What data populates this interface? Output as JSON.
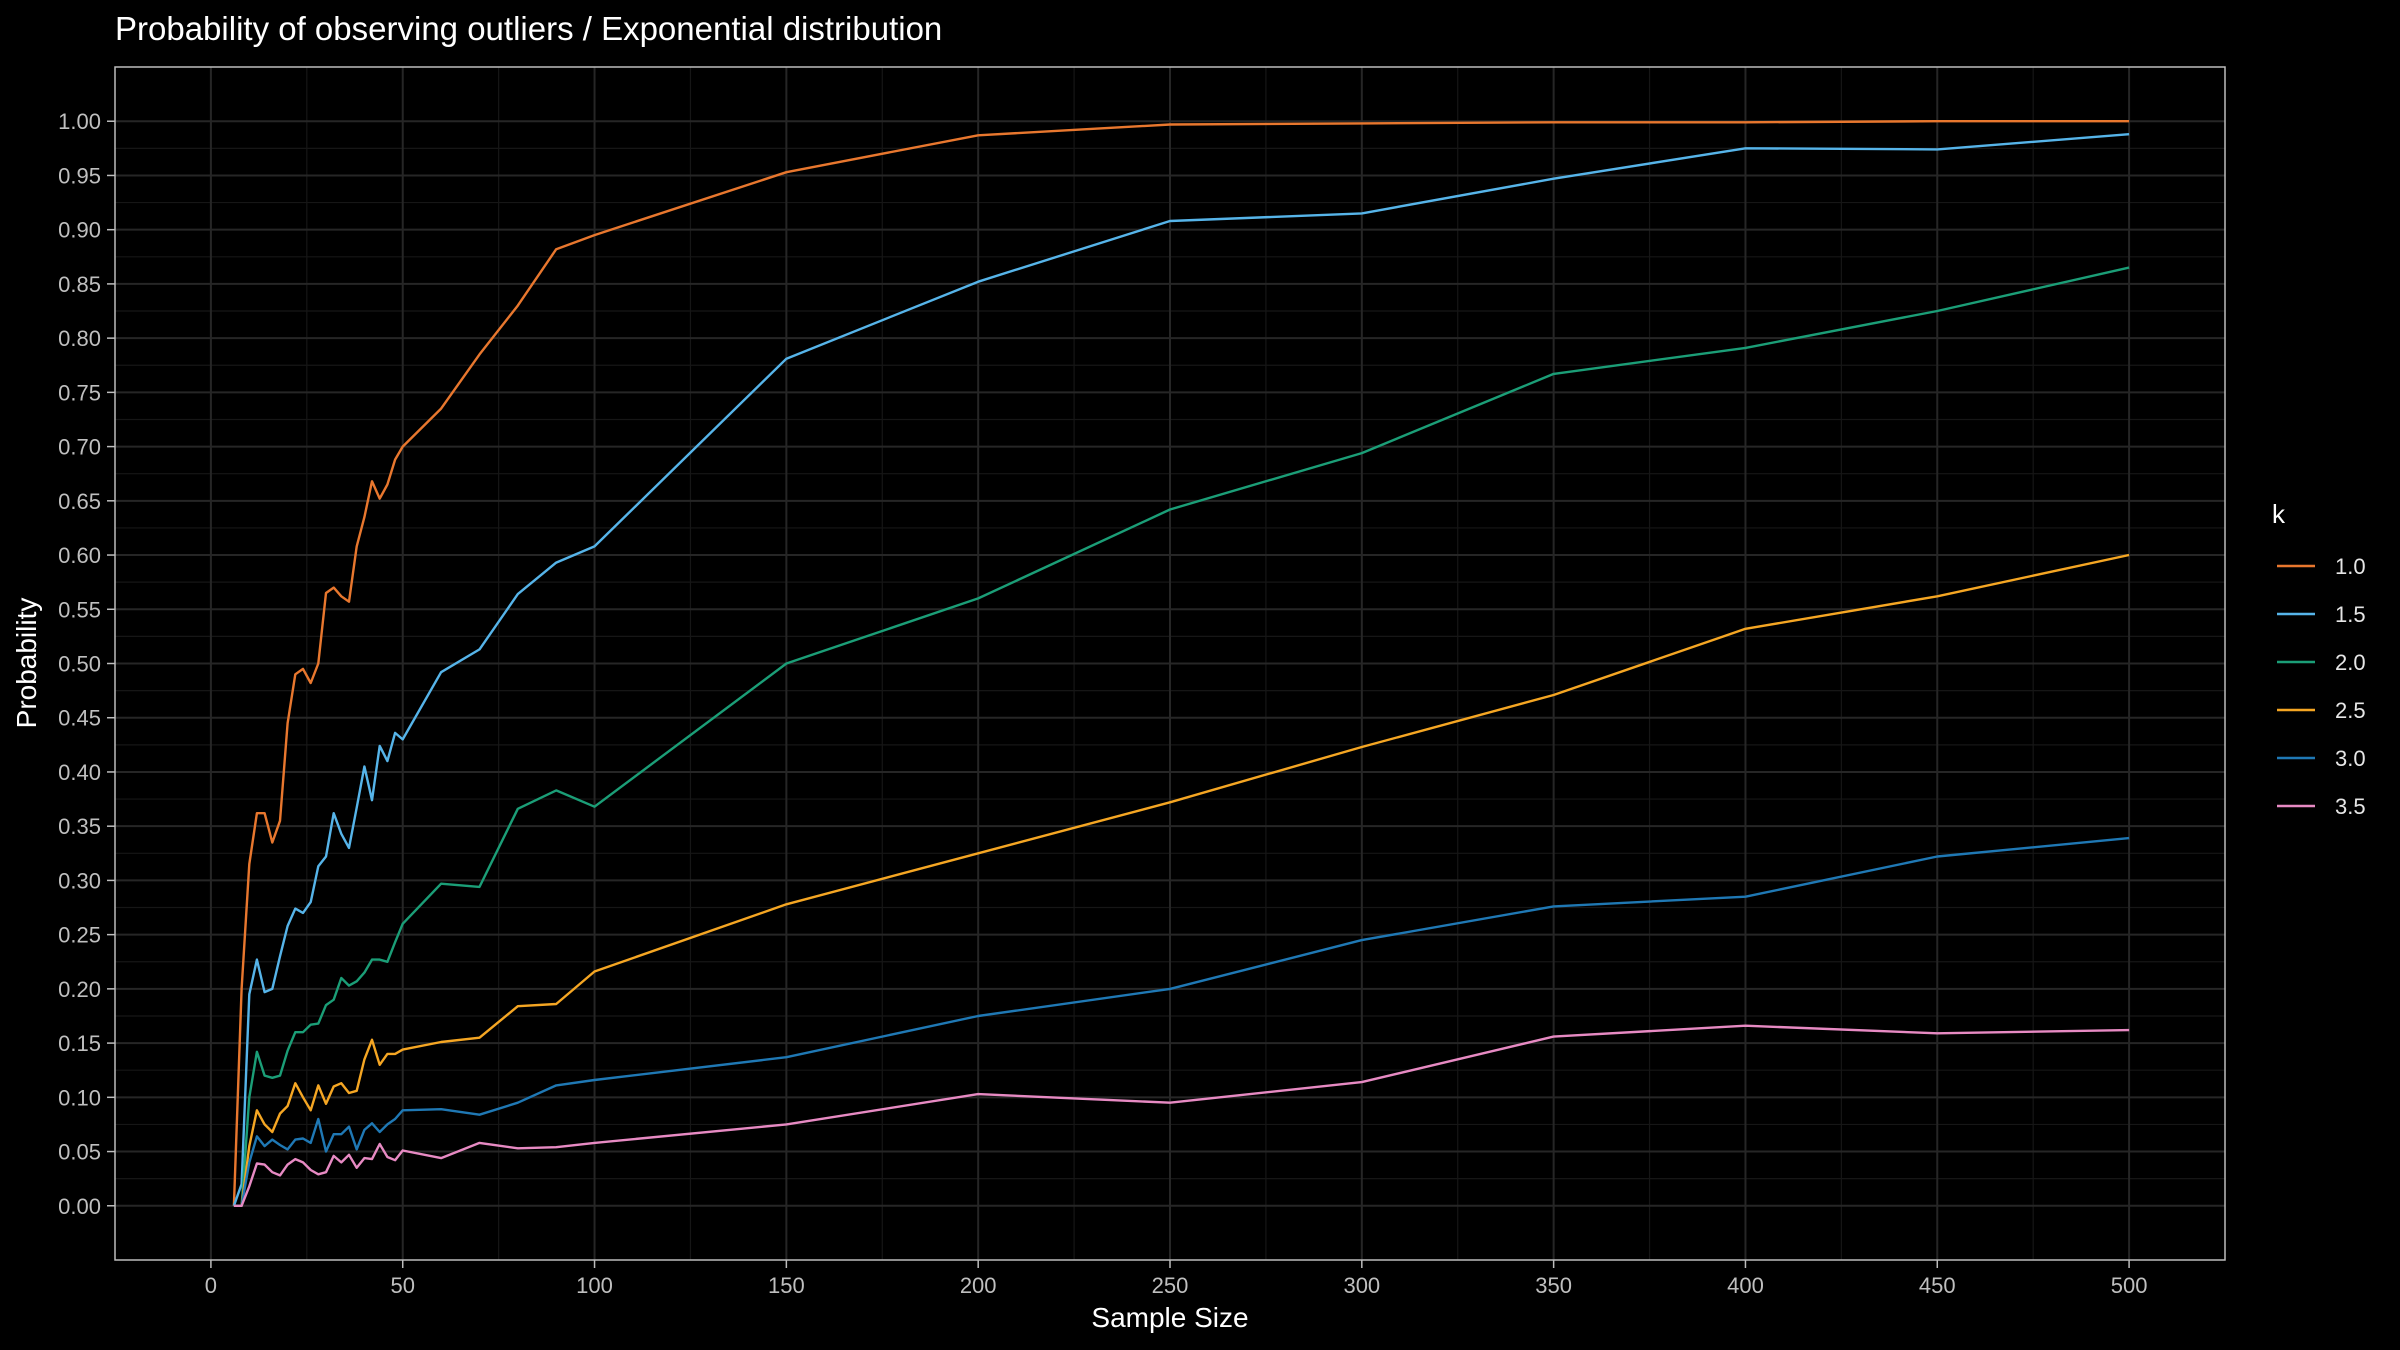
{
  "chart_data": {
    "type": "line",
    "title": "Probability of observing outliers / Exponential distribution",
    "xlabel": "Sample Size",
    "ylabel": "Probability",
    "xlim": [
      -25,
      525
    ],
    "ylim": [
      -0.05,
      1.05
    ],
    "x_ticks": [
      0,
      50,
      100,
      150,
      200,
      250,
      300,
      350,
      400,
      450,
      500
    ],
    "y_ticks": [
      0.0,
      0.05,
      0.1,
      0.15,
      0.2,
      0.25,
      0.3,
      0.35,
      0.4,
      0.45,
      0.5,
      0.55,
      0.6,
      0.65,
      0.7,
      0.75,
      0.8,
      0.85,
      0.9,
      0.95,
      1.0
    ],
    "grid": true,
    "legend_title": "k",
    "legend_position": "right",
    "x": [
      6,
      8,
      10,
      12,
      14,
      16,
      18,
      20,
      22,
      24,
      26,
      28,
      30,
      32,
      34,
      36,
      38,
      40,
      42,
      44,
      46,
      48,
      50,
      60,
      70,
      80,
      90,
      100,
      150,
      200,
      250,
      300,
      350,
      400,
      450,
      500
    ],
    "series": [
      {
        "name": "1.0",
        "color": "#e8772e",
        "values": [
          0.0,
          0.2,
          0.315,
          0.362,
          0.362,
          0.335,
          0.355,
          0.445,
          0.49,
          0.495,
          0.482,
          0.5,
          0.565,
          0.57,
          0.562,
          0.557,
          0.608,
          0.635,
          0.668,
          0.652,
          0.665,
          0.688,
          0.7,
          0.735,
          0.785,
          0.83,
          0.882,
          0.895,
          0.953,
          0.987,
          0.997,
          0.998,
          0.999,
          0.999,
          1.0,
          1.0
        ]
      },
      {
        "name": "1.5",
        "color": "#56b4e9",
        "values": [
          0.0,
          0.02,
          0.195,
          0.227,
          0.197,
          0.2,
          0.23,
          0.258,
          0.274,
          0.27,
          0.28,
          0.313,
          0.322,
          0.362,
          0.343,
          0.33,
          0.367,
          0.405,
          0.374,
          0.424,
          0.41,
          0.436,
          0.43,
          0.492,
          0.513,
          0.564,
          0.593,
          0.608,
          0.781,
          0.852,
          0.908,
          0.915,
          0.947,
          0.975,
          0.974,
          0.988
        ]
      },
      {
        "name": "2.0",
        "color": "#1b9e77",
        "values": [
          0.0,
          0.0,
          0.1,
          0.142,
          0.12,
          0.118,
          0.12,
          0.143,
          0.16,
          0.16,
          0.167,
          0.168,
          0.185,
          0.19,
          0.21,
          0.203,
          0.207,
          0.215,
          0.227,
          0.227,
          0.225,
          0.243,
          0.26,
          0.297,
          0.294,
          0.366,
          0.383,
          0.368,
          0.5,
          0.56,
          0.642,
          0.694,
          0.767,
          0.791,
          0.825,
          0.865
        ]
      },
      {
        "name": "2.5",
        "color": "#f5a623",
        "values": [
          0.0,
          0.0,
          0.055,
          0.088,
          0.075,
          0.068,
          0.085,
          0.092,
          0.113,
          0.1,
          0.088,
          0.111,
          0.094,
          0.11,
          0.113,
          0.104,
          0.106,
          0.135,
          0.153,
          0.13,
          0.14,
          0.14,
          0.144,
          0.151,
          0.155,
          0.184,
          0.186,
          0.216,
          0.278,
          0.325,
          0.372,
          0.423,
          0.471,
          0.532,
          0.562,
          0.6
        ]
      },
      {
        "name": "3.0",
        "color": "#1f78b4",
        "values": [
          0.0,
          0.0,
          0.04,
          0.064,
          0.055,
          0.061,
          0.056,
          0.052,
          0.061,
          0.062,
          0.058,
          0.08,
          0.05,
          0.066,
          0.066,
          0.073,
          0.052,
          0.07,
          0.076,
          0.068,
          0.075,
          0.08,
          0.088,
          0.089,
          0.084,
          0.095,
          0.111,
          0.116,
          0.137,
          0.175,
          0.2,
          0.245,
          0.276,
          0.285,
          0.322,
          0.339
        ]
      },
      {
        "name": "3.5",
        "color": "#e78ac3",
        "values": [
          0.0,
          0.0,
          0.018,
          0.039,
          0.038,
          0.031,
          0.028,
          0.038,
          0.043,
          0.04,
          0.033,
          0.029,
          0.031,
          0.046,
          0.04,
          0.047,
          0.035,
          0.044,
          0.043,
          0.057,
          0.045,
          0.042,
          0.051,
          0.044,
          0.058,
          0.053,
          0.054,
          0.058,
          0.075,
          0.103,
          0.095,
          0.114,
          0.156,
          0.166,
          0.159,
          0.162
        ]
      }
    ]
  }
}
